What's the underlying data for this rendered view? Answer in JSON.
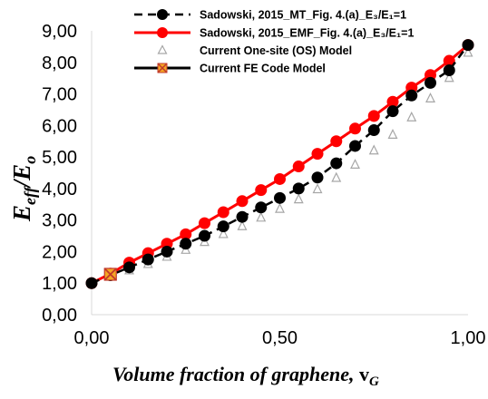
{
  "chart_data": {
    "type": "scatter",
    "title": "",
    "xlabel": {
      "main": "Volume fraction of graphene, ",
      "symbol": "v",
      "sub": "G"
    },
    "ylabel": {
      "symbol": "E",
      "sub_top": "eff",
      "slash": "/",
      "symbol2": "E",
      "sub_bottom": "o"
    },
    "xlim": [
      0,
      1
    ],
    "ylim": [
      0,
      9
    ],
    "x_ticks": [
      0,
      0.5,
      1
    ],
    "x_tick_labels": [
      "0,00",
      "0,50",
      "1,00"
    ],
    "y_ticks": [
      0,
      1,
      2,
      3,
      4,
      5,
      6,
      7,
      8,
      9
    ],
    "y_tick_labels": [
      "0,00",
      "1,00",
      "2,00",
      "3,00",
      "4,00",
      "5,00",
      "6,00",
      "7,00",
      "8,00",
      "9,00"
    ],
    "grid": false,
    "legend_position": "top-right",
    "series": [
      {
        "name": "Sadowski, 2015_MT_Fig. 4.(a)_E₃/E₁=1",
        "color": "#000000",
        "line": "dashed",
        "marker": "filled-circle",
        "x": [
          0.0,
          0.05,
          0.1,
          0.15,
          0.2,
          0.25,
          0.3,
          0.35,
          0.4,
          0.45,
          0.5,
          0.55,
          0.6,
          0.65,
          0.7,
          0.75,
          0.8,
          0.85,
          0.9,
          0.95,
          1.0
        ],
        "y": [
          1.0,
          1.25,
          1.5,
          1.75,
          2.0,
          2.25,
          2.5,
          2.8,
          3.1,
          3.4,
          3.7,
          4.0,
          4.35,
          4.8,
          5.35,
          5.85,
          6.45,
          6.95,
          7.35,
          7.75,
          8.55
        ]
      },
      {
        "name": "Sadowski, 2015_EMF_Fig. 4.(a)_E₃/E₁=1",
        "color": "#ff0000",
        "line": "solid",
        "marker": "filled-circle",
        "x": [
          0.0,
          0.05,
          0.1,
          0.15,
          0.2,
          0.25,
          0.3,
          0.35,
          0.4,
          0.45,
          0.5,
          0.55,
          0.6,
          0.65,
          0.7,
          0.75,
          0.8,
          0.85,
          0.9,
          0.95,
          1.0
        ],
        "y": [
          1.0,
          1.3,
          1.65,
          1.95,
          2.25,
          2.55,
          2.9,
          3.25,
          3.6,
          3.95,
          4.3,
          4.7,
          5.1,
          5.5,
          5.9,
          6.3,
          6.75,
          7.2,
          7.6,
          8.05,
          8.55
        ]
      },
      {
        "name": "Current One-site (OS) Model",
        "color": "#a6a6a6",
        "line": "none",
        "marker": "open-triangle",
        "x": [
          0.0,
          0.05,
          0.1,
          0.15,
          0.2,
          0.25,
          0.3,
          0.35,
          0.4,
          0.45,
          0.5,
          0.55,
          0.6,
          0.65,
          0.7,
          0.75,
          0.8,
          0.85,
          0.9,
          0.95,
          1.0
        ],
        "y": [
          1.0,
          1.2,
          1.4,
          1.6,
          1.83,
          2.05,
          2.3,
          2.55,
          2.8,
          3.07,
          3.35,
          3.65,
          3.97,
          4.33,
          4.75,
          5.2,
          5.7,
          6.25,
          6.85,
          7.5,
          8.3
        ]
      },
      {
        "name": "Current FE Code Model",
        "color": "#000000",
        "line": "solid",
        "marker": "orange-square-x",
        "x": [
          0.05
        ],
        "y": [
          1.28
        ]
      }
    ]
  }
}
